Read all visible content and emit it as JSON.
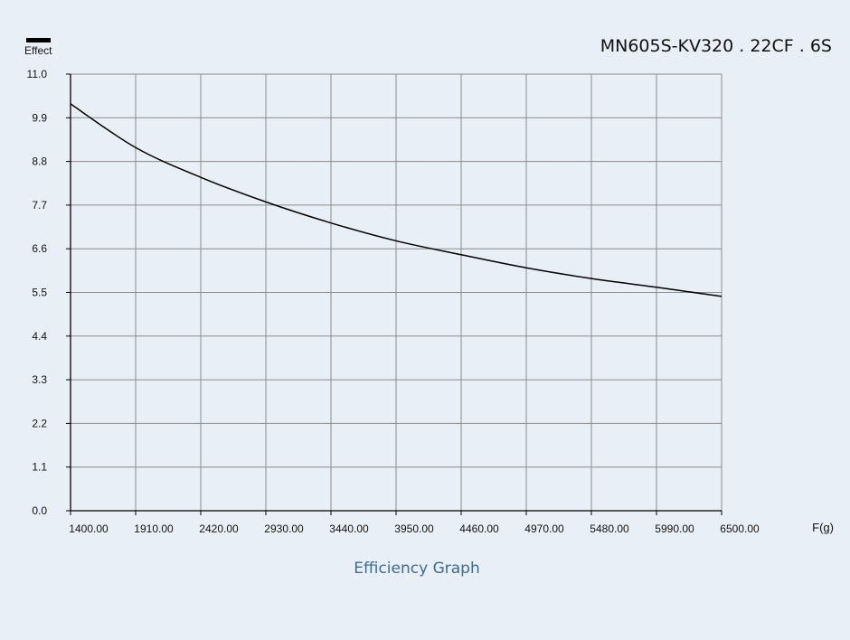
{
  "chart_data": {
    "type": "line",
    "title": "MN605S-KV320 . 22CF . 6S",
    "caption": "Efficiency Graph",
    "legend": {
      "label": "Effect",
      "placement": "top-left",
      "color": "#000000"
    },
    "xlabel": "F(g)",
    "ylabel": "",
    "xlim": [
      1400,
      6500
    ],
    "ylim": [
      0,
      11
    ],
    "grid": true,
    "x_ticks": [
      "1400.00",
      "1910.00",
      "2420.00",
      "2930.00",
      "3440.00",
      "3950.00",
      "4460.00",
      "4970.00",
      "5480.00",
      "5990.00",
      "6500.00"
    ],
    "y_ticks": [
      "0.0",
      "1.1",
      "2.2",
      "3.3",
      "4.4",
      "5.5",
      "6.6",
      "7.7",
      "8.8",
      "9.9",
      "11.0"
    ],
    "series": [
      {
        "name": "Effect",
        "color": "#000000",
        "x": [
          1400,
          1910,
          2420,
          2930,
          3440,
          3950,
          4460,
          4970,
          5480,
          5990,
          6500
        ],
        "y": [
          10.25,
          9.15,
          8.4,
          7.78,
          7.25,
          6.8,
          6.45,
          6.12,
          5.85,
          5.63,
          5.4
        ]
      }
    ]
  }
}
